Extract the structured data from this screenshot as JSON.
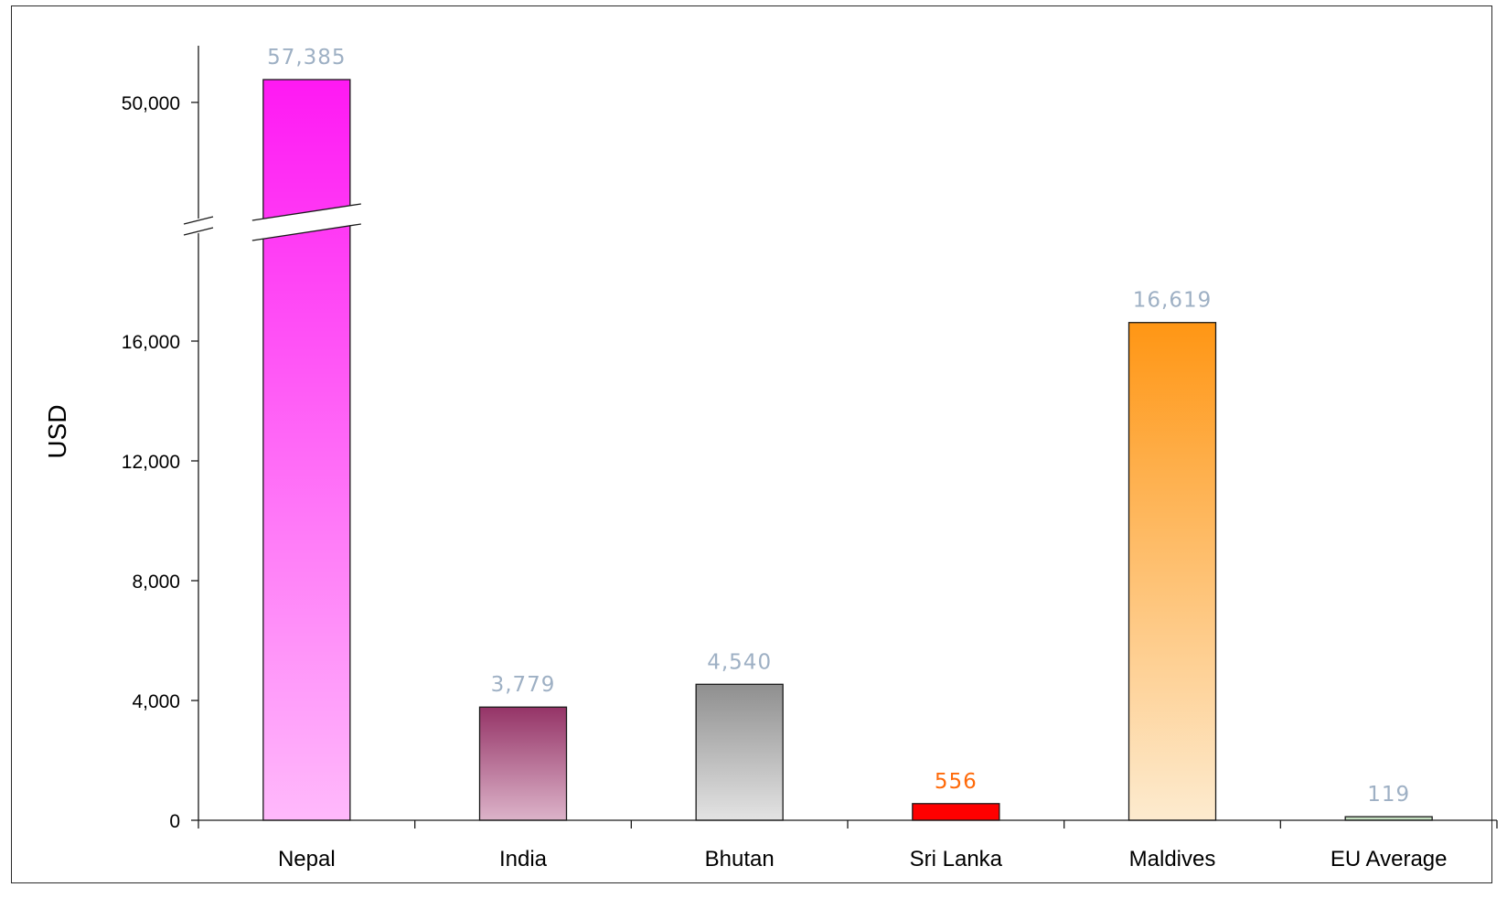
{
  "chart_data": {
    "type": "bar",
    "title": "",
    "xlabel": "",
    "ylabel": "USD",
    "ylim": [
      0,
      57385
    ],
    "axis_break": {
      "lower_range": [
        0,
        19000
      ],
      "upper_range": [
        42000,
        57385
      ]
    },
    "yticks": [
      {
        "value": 0,
        "label": "0"
      },
      {
        "value": 4000,
        "label": "4,000"
      },
      {
        "value": 8000,
        "label": "8,000"
      },
      {
        "value": 12000,
        "label": "12,000"
      },
      {
        "value": 16000,
        "label": "16,000"
      },
      {
        "value": 50000,
        "label": "50,000"
      }
    ],
    "categories": [
      "Nepal",
      "India",
      "Bhutan",
      "Sri Lanka",
      "Maldives",
      "EU Average"
    ],
    "values": [
      57385,
      3779,
      4540,
      556,
      16619,
      119
    ],
    "data_labels": [
      "57,385",
      "3,779",
      "4,540",
      "556",
      "16,619",
      "119"
    ],
    "bar_colors": [
      {
        "top": "#ff19f3",
        "bottom": "#ffb9fb"
      },
      {
        "top": "#953467",
        "bottom": "#dcb3c9"
      },
      {
        "top": "#8f8f8f",
        "bottom": "#e3e3e3"
      },
      {
        "top": "#ff0000",
        "bottom": "#ff0000"
      },
      {
        "top": "#ff9614",
        "bottom": "#fdebcf"
      },
      {
        "top": "#c4dfc0",
        "bottom": "#c4dfc0"
      }
    ],
    "label_colors": [
      "#9eb0c4",
      "#9eb0c4",
      "#9eb0c4",
      "#ff6a0a",
      "#9eb0c4",
      "#9eb0c4"
    ],
    "grid": false,
    "legend": "none"
  }
}
